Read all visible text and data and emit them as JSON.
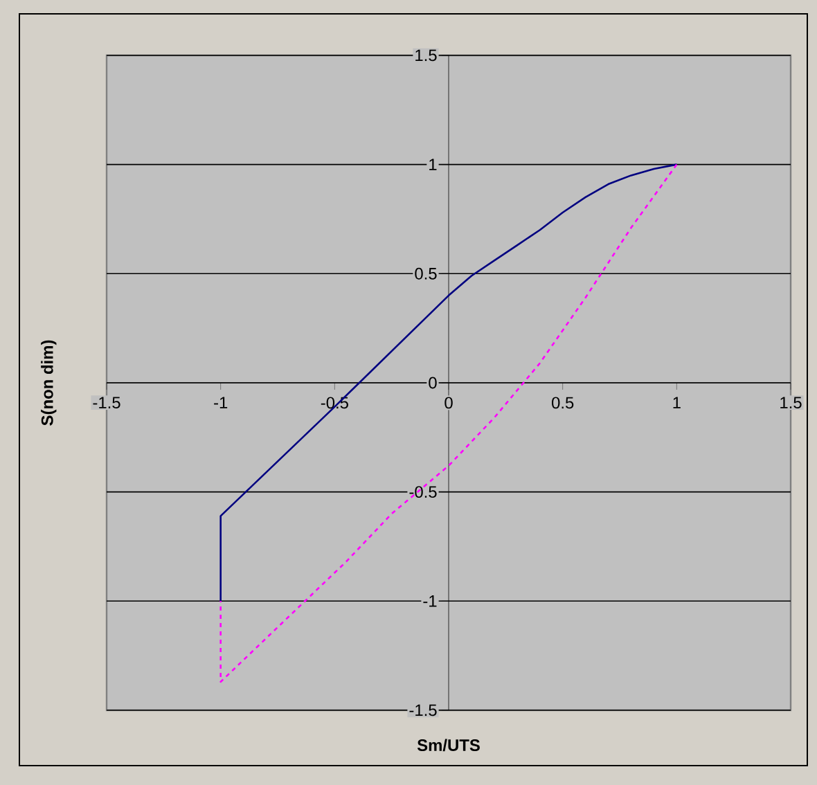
{
  "chart_data": {
    "type": "line",
    "xlabel": "Sm/UTS",
    "ylabel": "S(non dim)",
    "xlim": [
      -1.5,
      1.5
    ],
    "ylim": [
      -1.5,
      1.5
    ],
    "xticks": [
      -1.5,
      -1,
      -0.5,
      0,
      0.5,
      1,
      1.5
    ],
    "yticks": [
      -1.5,
      -1,
      -0.5,
      0,
      0.5,
      1,
      1.5
    ],
    "grid": "y",
    "series": [
      {
        "color": "#000080",
        "line_style": "solid",
        "x": [
          -1,
          -1,
          -0.5,
          0,
          0.1,
          0.2,
          0.3,
          0.4,
          0.5,
          0.6,
          0.7,
          0.8,
          0.9,
          1
        ],
        "values": [
          -1,
          -0.61,
          -0.11,
          0.4,
          0.49,
          0.56,
          0.63,
          0.7,
          0.78,
          0.85,
          0.91,
          0.95,
          0.98,
          1
        ]
      },
      {
        "color": "#ff00ff",
        "line_style": "dashed",
        "x": [
          1,
          0.8,
          0.6,
          0.4,
          0.2,
          0,
          -0.25,
          -0.45,
          -0.65,
          -0.85,
          -1,
          -1
        ],
        "values": [
          1,
          0.71,
          0.39,
          0.09,
          -0.16,
          -0.38,
          -0.6,
          -0.82,
          -1.02,
          -1.22,
          -1.37,
          -1
        ]
      }
    ]
  }
}
